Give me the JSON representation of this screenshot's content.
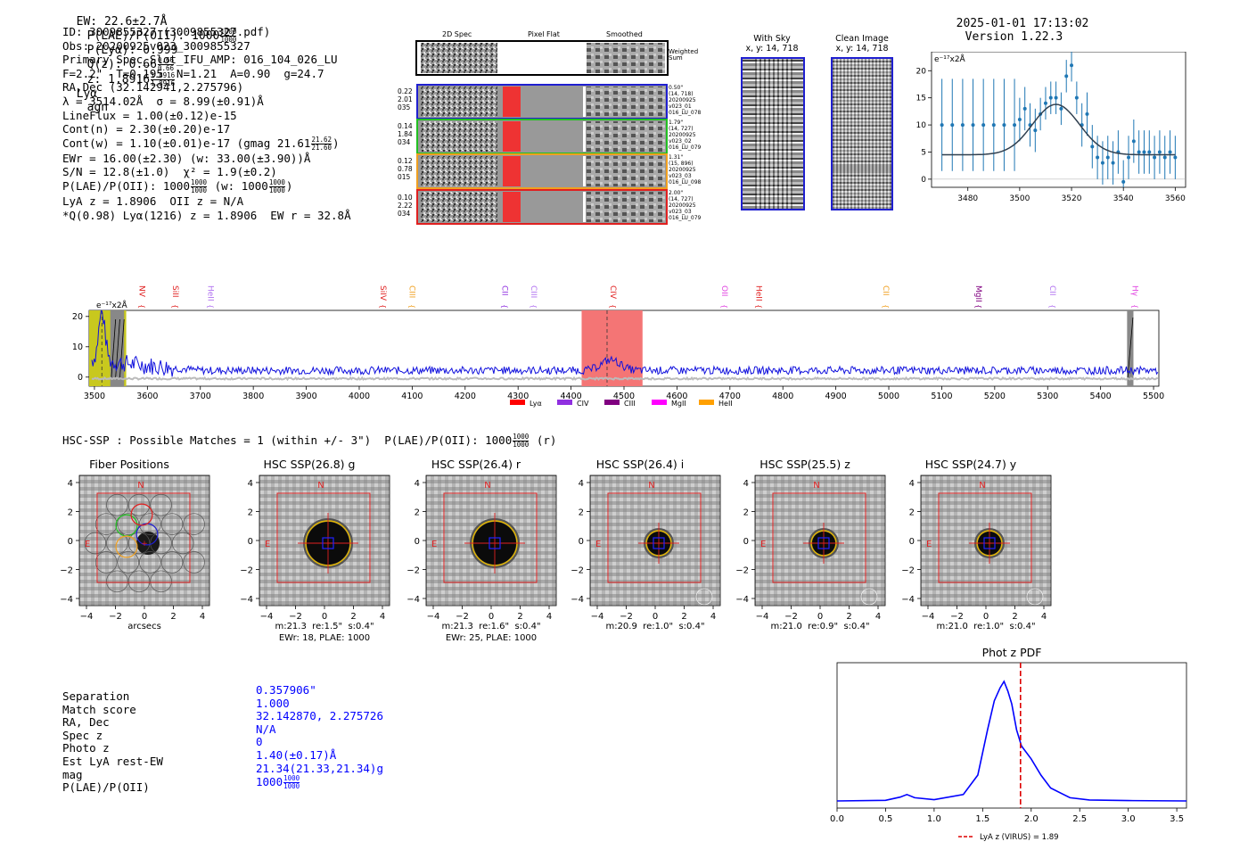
{
  "header": {
    "ew": "EW: 22.6±2.7Å",
    "plae": "P(LAE)/P(OII): 1000",
    "plae_frac": [
      "1000",
      "1000"
    ],
    "plya": "P(Lyα): 0.999",
    "qz": "Q(z): 0.66",
    "qz_frac": [
      "0.66",
      "0.66"
    ],
    "z": "z: 1.8916",
    "z_frac": [
      "1.8916",
      "1.8916"
    ],
    "line": "Lyα",
    "agn": "agn",
    "timestamp": "2025-01-01 17:13:02",
    "version": "Version 1.22.3"
  },
  "info": {
    "id": "ID: 3009855327 (3009855327.pdf)",
    "obs": "Obs: 20200925v023_3009855327",
    "primary": "Primary Spec_Slot_IFU_AMP: 016_104_026_LU",
    "fwhm": "F=2.2\"  T=0.195  N=1.21  A=0.90  g=24.7",
    "radec": "RA,Dec (32.142941,2.275796)",
    "lambda": "λ = 3514.02Å  σ = 8.99(±0.91)Å",
    "lineflux": "LineFlux = 1.00(±0.12)e-15",
    "contn": "Cont(n) = 2.30(±0.20)e-17",
    "contw": "Cont(w) = 1.10(±0.01)e-17 (gmag 21.61",
    "contw_frac": [
      "21.62",
      "21.60"
    ],
    "contw_end": ")",
    "ewr": "EWr = 16.00(±2.30) (w: 33.00(±3.90))Å",
    "sn": "S/N = 12.8(±1.0)  χ² = 1.9(±0.2)",
    "plae": "P(LAE)/P(OII): 1000",
    "plae_frac": [
      "1000",
      "1000"
    ],
    "plae_w": "(w: 1000",
    "plae_w_frac": [
      "1000",
      "1000"
    ],
    "plae_w_end": ")",
    "lya": "LyA z = 1.8906  OII z = N/A",
    "q": "*Q(0.98) Lyα(1216) z = 1.8906  EW r = 32.8Å"
  },
  "cutouts": {
    "col_titles": [
      "2D Spec",
      "Pixel Flat",
      "Smoothed"
    ],
    "weighted_sum": "Weighted\nSum",
    "rows": [
      {
        "left": "0.22\n2.01\n035",
        "right": "0.50\"\n(14, 718)\n20200925\nv023_01\n016_LU_078",
        "color": "#1f1fd0"
      },
      {
        "left": "0.14\n1.84\n034",
        "right": "1.79\"\n(14, 727)\n20200925\nv023_02\n016_LU_079",
        "color": "#22c022"
      },
      {
        "left": "0.12\n0.78\n015",
        "right": "1.31\"\n(15, 896)\n20200925\nv023_03\n016_LU_098",
        "color": "#f0a020"
      },
      {
        "left": "0.10\n2.22\n034",
        "right": "2.00\"\n(14, 727)\n20200925\nv023_03\n016_LU_079",
        "color": "#e02020"
      }
    ]
  },
  "panels": {
    "with_sky": "With Sky",
    "with_sky_xy": "x, y: 14, 718",
    "clean": "Clean Image",
    "clean_xy": "x, y: 14, 718"
  },
  "chart_data": [
    {
      "type": "scatter",
      "name": "line-fit-zoom",
      "units_label": "e⁻¹⁷x2Å",
      "xlim": [
        3466,
        3564
      ],
      "ylim": [
        -1.5,
        23.5
      ],
      "xticks": [
        3480,
        3500,
        3520,
        3540,
        3560
      ],
      "yticks": [
        0,
        5,
        10,
        15,
        20
      ],
      "x": [
        3470,
        3474,
        3478,
        3482,
        3486,
        3490,
        3494,
        3498,
        3500,
        3502,
        3504,
        3506,
        3508,
        3510,
        3512,
        3514,
        3516,
        3518,
        3520,
        3522,
        3524,
        3526,
        3528,
        3530,
        3532,
        3534,
        3536,
        3538,
        3540,
        3542,
        3544,
        3546,
        3548,
        3550,
        3552,
        3554,
        3556,
        3558,
        3560
      ],
      "y": [
        10,
        10,
        10,
        10,
        10,
        10,
        10,
        10,
        11,
        13,
        10,
        9,
        12,
        14,
        15,
        15,
        13,
        19,
        21,
        15,
        10,
        12,
        6,
        4,
        3,
        4,
        3,
        5,
        -0.5,
        4,
        7,
        5,
        5,
        5,
        4,
        5,
        4,
        5,
        4
      ],
      "fit_center": 3514,
      "fit_sigma": 9,
      "fit_amp": 9.3,
      "fit_base": 4.5
    },
    {
      "type": "line",
      "name": "full-spectrum",
      "units_label": "e⁻¹⁷x2Å",
      "xlim": [
        3490,
        5510
      ],
      "ylim": [
        -3,
        22
      ],
      "xticks": [
        3500,
        3600,
        3700,
        3800,
        3900,
        4000,
        4100,
        4200,
        4300,
        4400,
        4500,
        4600,
        4700,
        4800,
        4900,
        5000,
        5100,
        5200,
        5300,
        5400,
        5500
      ],
      "yticks": [
        0,
        10,
        20
      ],
      "lines": [
        {
          "label": "NV",
          "wave": 3580,
          "color": "#e02020"
        },
        {
          "label": "SiII",
          "wave": 3643,
          "color": "#e02020"
        },
        {
          "label": "HeII",
          "wave": 3710,
          "color": "#b070f0"
        },
        {
          "label": "SiIV",
          "wave": 4035,
          "color": "#e02020"
        },
        {
          "label": "CIII",
          "wave": 4090,
          "color": "#f0a020"
        },
        {
          "label": "CII",
          "wave": 4265,
          "color": "#9030e0"
        },
        {
          "label": "CIII",
          "wave": 4320,
          "color": "#b070f0"
        },
        {
          "label": "CIV",
          "wave": 4470,
          "color": "#e02020"
        },
        {
          "label": "OII",
          "wave": 4680,
          "color": "#e040e0"
        },
        {
          "label": "HeII",
          "wave": 4745,
          "color": "#e02020"
        },
        {
          "label": "CII",
          "wave": 4985,
          "color": "#f0a020"
        },
        {
          "label": "MgII",
          "wave": 5160,
          "color": "#800080"
        },
        {
          "label": "CII",
          "wave": 5300,
          "color": "#b070f0"
        },
        {
          "label": "Hγ",
          "wave": 5455,
          "color": "#e040e0"
        }
      ],
      "legend": [
        {
          "label": "Lyα",
          "color": "#ff0000"
        },
        {
          "label": "CIV",
          "color": "#9030e0"
        },
        {
          "label": "CIII",
          "color": "#800080"
        },
        {
          "label": "MgII",
          "color": "#ff00ff"
        },
        {
          "label": "HeII",
          "color": "#ffa000"
        }
      ]
    },
    {
      "type": "line",
      "name": "photz-pdf",
      "title": "Phot z PDF",
      "xlim": [
        0.0,
        3.6
      ],
      "xticks": [
        0.0,
        0.5,
        1.0,
        1.5,
        2.0,
        2.5,
        3.0,
        3.5
      ],
      "x": [
        0.0,
        0.5,
        0.65,
        0.72,
        0.8,
        1.0,
        1.3,
        1.45,
        1.55,
        1.62,
        1.68,
        1.72,
        1.76,
        1.8,
        1.85,
        1.9,
        2.0,
        2.1,
        2.2,
        2.4,
        2.6,
        3.0,
        3.6
      ],
      "y": [
        0.0,
        0.002,
        0.012,
        0.02,
        0.01,
        0.004,
        0.02,
        0.08,
        0.22,
        0.31,
        0.35,
        0.37,
        0.34,
        0.3,
        0.22,
        0.17,
        0.13,
        0.08,
        0.04,
        0.01,
        0.003,
        0.001,
        0.0
      ],
      "marker_z": 1.89,
      "legend": "LyA z (VIRUS) = 1.89"
    }
  ],
  "hsc": {
    "heading": "HSC-SSP : Possible Matches = 1 (within +/- 3\")  P(LAE)/P(OII): 1000",
    "heading_frac": [
      "1000",
      "1000"
    ],
    "heading_end": "(r)",
    "stamps": [
      {
        "title": "Fiber Positions",
        "caption1": "arcsecs",
        "caption2": "",
        "kind": "fiber"
      },
      {
        "title": "HSC SSP(26.8) g",
        "caption1": "m:21.3  re:1.5\"  s:0.4\"",
        "caption2": "EWr: 18, PLAE: 1000",
        "kind": "big"
      },
      {
        "title": "HSC SSP(26.4) r",
        "caption1": "m:21.3  re:1.6\"  s:0.4\"",
        "caption2": "EWr: 25, PLAE: 1000",
        "kind": "big"
      },
      {
        "title": "HSC SSP(26.4) i",
        "caption1": "m:20.9  re:1.0\"  s:0.4\"",
        "caption2": "",
        "kind": "small"
      },
      {
        "title": "HSC SSP(25.5) z",
        "caption1": "m:21.0  re:0.9\"  s:0.4\"",
        "caption2": "",
        "kind": "small"
      },
      {
        "title": "HSC SSP(24.7) y",
        "caption1": "m:21.0  re:1.0\"  s:0.4\"",
        "caption2": "",
        "kind": "small"
      }
    ],
    "ticks": [
      "4",
      "2",
      "0",
      "−2",
      "−4"
    ],
    "xticks": [
      "−4",
      "−2",
      "0",
      "2",
      "4"
    ],
    "n": "N",
    "e": "E"
  },
  "match": {
    "labels": [
      "Separation",
      "Match score",
      "RA, Dec",
      "Spec z",
      "Photo z",
      "Est LyA rest-EW",
      "mag",
      "P(LAE)/P(OII)"
    ],
    "values": [
      "0.357906\"",
      "1.000",
      "32.142870, 2.275726",
      "N/A",
      "0",
      "1.40(±0.17)Å",
      "21.34(21.33,21.34)g",
      "1000"
    ],
    "plae_frac": [
      "1000",
      "1000"
    ]
  }
}
